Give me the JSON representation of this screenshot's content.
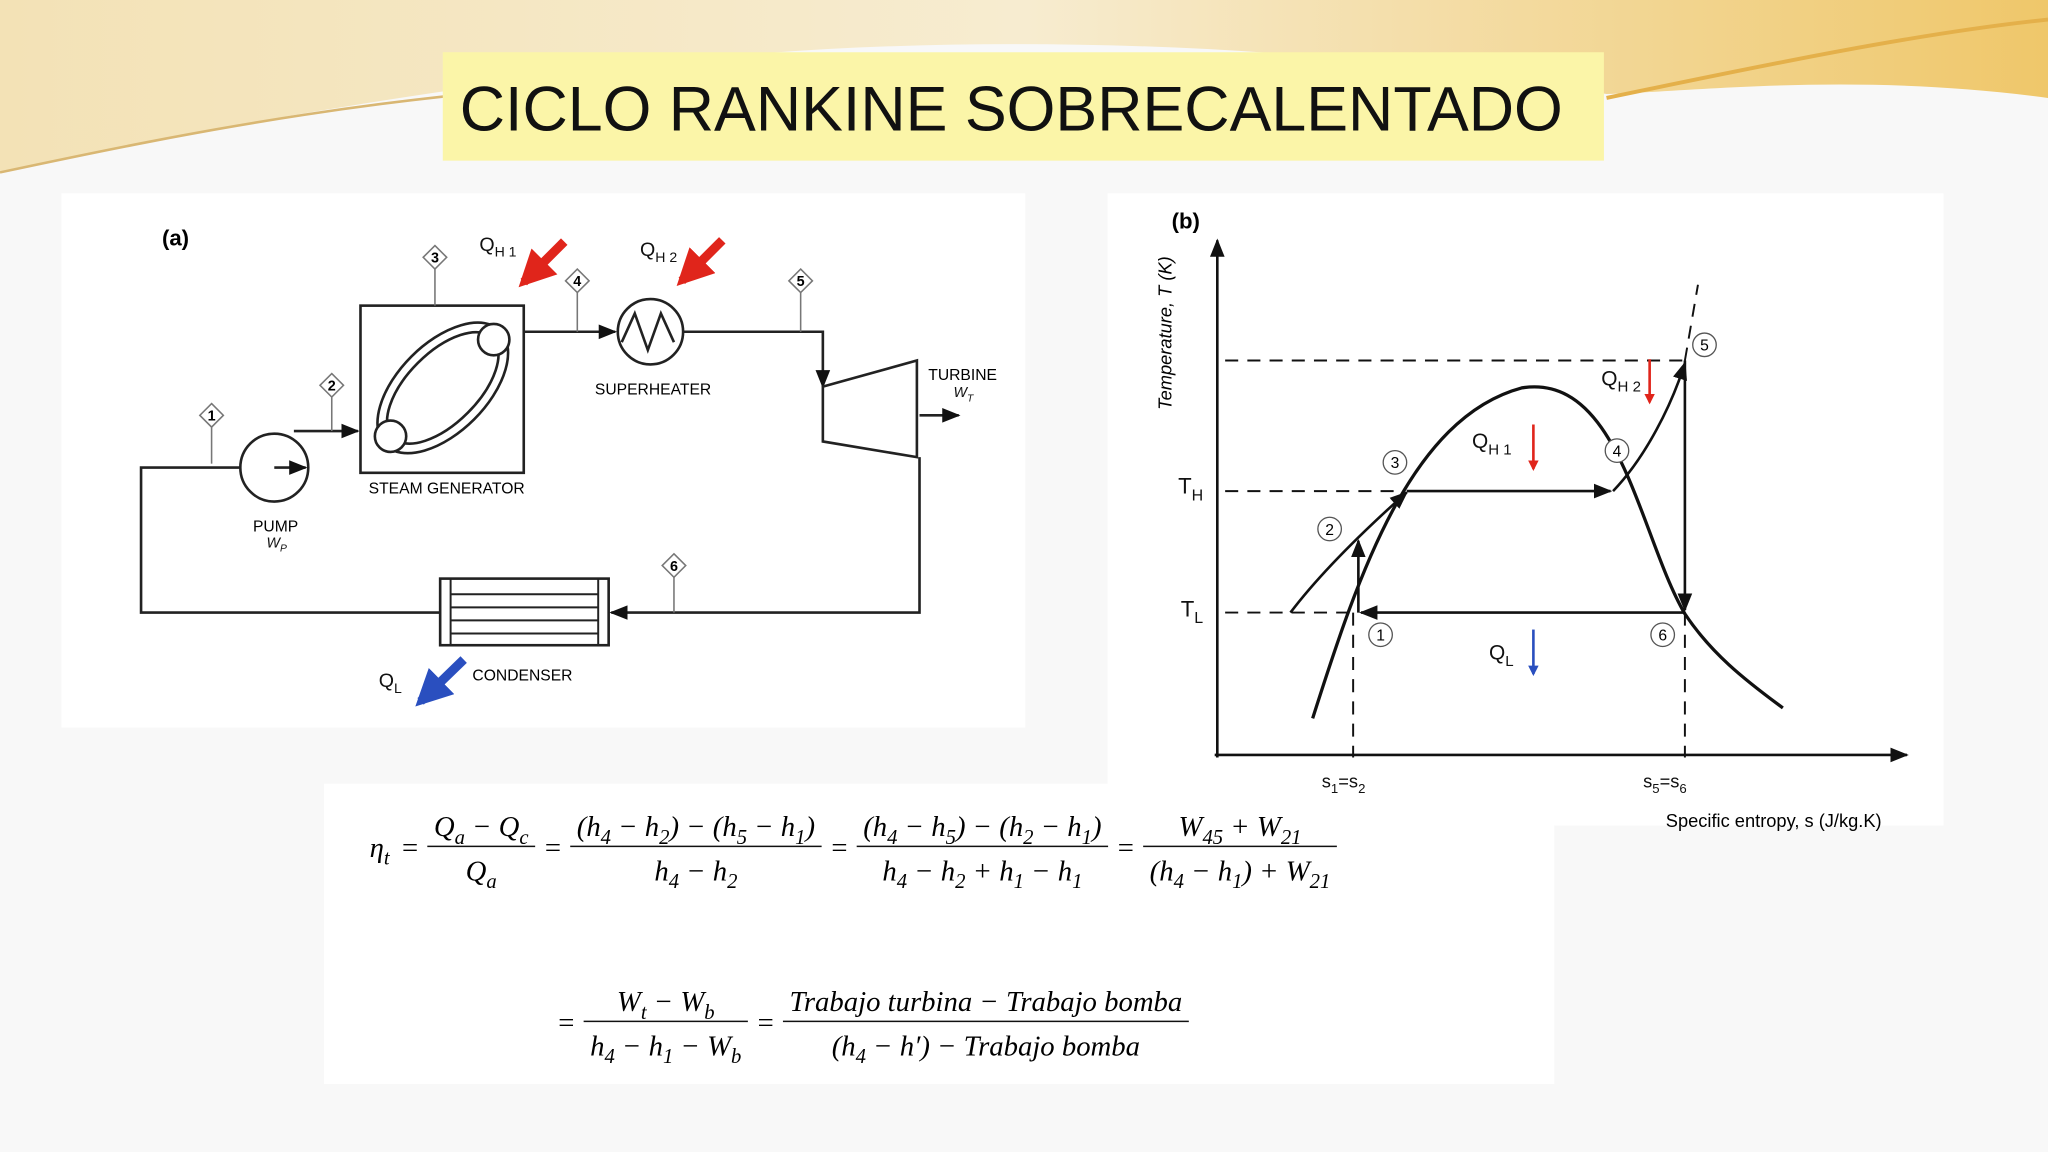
{
  "slide": {
    "title": "CICLO RANKINE SOBRECALENTADO"
  },
  "diagram_a": {
    "label": "(a)",
    "states": [
      "1",
      "2",
      "3",
      "4",
      "5",
      "6"
    ],
    "q_h1": [
      [
        "Q",
        "H 1"
      ]
    ],
    "q_h2": [
      [
        "Q",
        "H 2"
      ]
    ],
    "superheater": "SUPERHEATER",
    "turbine": "TURBINE",
    "w_t": [
      [
        "W",
        "T"
      ]
    ],
    "steam_generator": "STEAM GENERATOR",
    "pump": "PUMP",
    "w_p": [
      [
        "W",
        "P"
      ]
    ],
    "condenser": "CONDENSER",
    "q_l": [
      [
        "Q",
        "L"
      ]
    ]
  },
  "diagram_b": {
    "label": "(b)",
    "y_axis": "Temperature, T (K)",
    "x_axis": "Specific entropy, s (J/kg.K)",
    "t_h": [
      [
        "T",
        "H"
      ]
    ],
    "t_l": [
      [
        "T",
        "L"
      ]
    ],
    "q_h2": [
      [
        "Q",
        "H 2"
      ]
    ],
    "q_h1": [
      [
        "Q",
        "H 1"
      ]
    ],
    "q_l": [
      [
        "Q",
        "L"
      ]
    ],
    "states": [
      "1",
      "2",
      "3",
      "4",
      "5",
      "6"
    ],
    "s12": [
      [
        "s",
        "1"
      ],
      "=",
      [
        "s",
        "2"
      ]
    ],
    "s56": [
      [
        "s",
        "5"
      ],
      "=",
      [
        "s",
        "6"
      ]
    ]
  },
  "equations": [
    [
      {
        "tokens": [
          [
            "η",
            "t"
          ]
        ]
      },
      "=",
      {
        "num": [
          [
            "Q",
            "a"
          ],
          " − ",
          [
            "Q",
            "c"
          ]
        ],
        "den": [
          [
            "Q",
            "a"
          ]
        ]
      },
      "=",
      {
        "num": [
          "(",
          [
            "h",
            "4"
          ],
          " − ",
          [
            "h",
            "2"
          ],
          ") − (",
          [
            "h",
            "5"
          ],
          " − ",
          [
            "h",
            "1"
          ],
          ")"
        ],
        "den": [
          [
            "h",
            "4"
          ],
          " − ",
          [
            "h",
            "2"
          ]
        ]
      },
      "=",
      {
        "num": [
          "(",
          [
            "h",
            "4"
          ],
          " − ",
          [
            "h",
            "5"
          ],
          ") − (",
          [
            "h",
            "2"
          ],
          " − ",
          [
            "h",
            "1"
          ],
          ")"
        ],
        "den": [
          [
            "h",
            "4"
          ],
          " − ",
          [
            "h",
            "2"
          ],
          " + ",
          [
            "h",
            "1"
          ],
          " − ",
          [
            "h",
            "1"
          ]
        ]
      },
      "=",
      {
        "num": [
          [
            "W",
            "45"
          ],
          " + ",
          [
            "W",
            "21"
          ]
        ],
        "den": [
          "(",
          [
            "h",
            "4"
          ],
          " − ",
          [
            "h",
            "1"
          ],
          ") + ",
          [
            "W",
            "21"
          ]
        ]
      }
    ],
    [
      "=",
      {
        "num": [
          [
            "W",
            "t"
          ],
          " − ",
          [
            "W",
            "b"
          ]
        ],
        "den": [
          [
            "h",
            "4"
          ],
          " − ",
          [
            "h",
            "1"
          ],
          " − ",
          [
            "W",
            "b"
          ]
        ]
      },
      "=",
      {
        "num": [
          "Trabajo turbina − Trabajo bomba"
        ],
        "den": [
          "(",
          [
            "h",
            "4"
          ],
          " − h′) − Trabajo bomba"
        ]
      }
    ]
  ]
}
